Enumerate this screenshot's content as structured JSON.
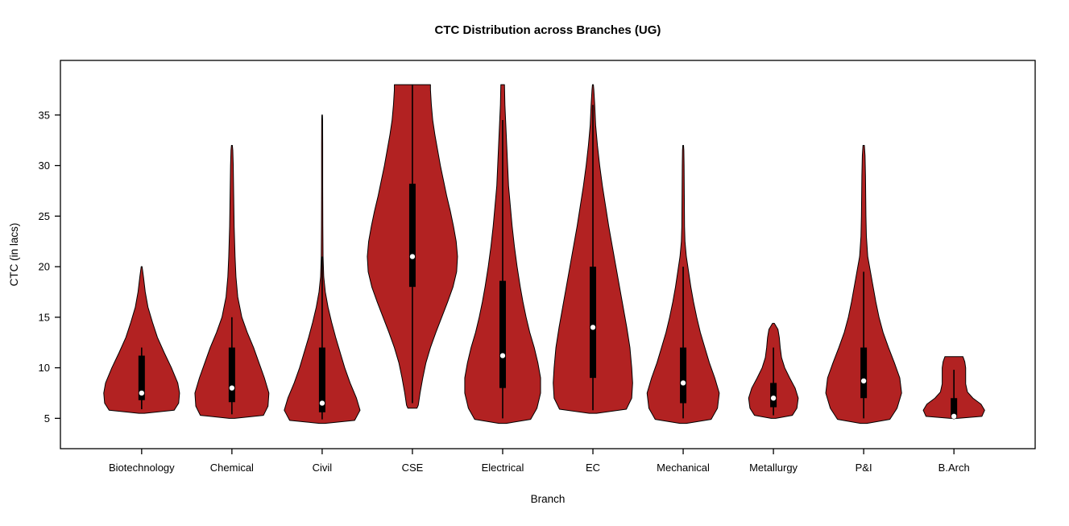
{
  "chart_data": {
    "type": "violin",
    "title": "CTC Distribution across Branches (UG)",
    "xlabel": "Branch",
    "ylabel": "CTC (in lacs)",
    "ylim": [
      2.0,
      40.4
    ],
    "yticks": [
      5,
      10,
      15,
      20,
      25,
      30,
      35
    ],
    "x_units_span": 10.8,
    "grid": false,
    "legend": "none",
    "fill_color": "#B22222",
    "outline_color": "#000000",
    "box_color": "#000000",
    "median_dot_color": "#ffffff",
    "categories": [
      "Biotechnology",
      "Chemical",
      "Civil",
      "CSE",
      "Electrical",
      "EC",
      "Mechanical",
      "Metallurgy",
      "P&I",
      "B.Arch"
    ],
    "violins": [
      {
        "branch": "Biotechnology",
        "min": 5.5,
        "max": 20,
        "median": 7.5,
        "q1": 6.8,
        "q3": 11.2,
        "whisker_low": 5.9,
        "whisker_high": 12,
        "profile": [
          [
            5.5,
            0.06
          ],
          [
            5.8,
            0.72
          ],
          [
            6.5,
            0.82
          ],
          [
            7.5,
            0.84
          ],
          [
            8.5,
            0.8
          ],
          [
            10,
            0.66
          ],
          [
            11.5,
            0.5
          ],
          [
            13,
            0.35
          ],
          [
            14.5,
            0.24
          ],
          [
            16,
            0.14
          ],
          [
            17.5,
            0.08
          ],
          [
            19,
            0.04
          ],
          [
            20,
            0.01
          ]
        ]
      },
      {
        "branch": "Chemical",
        "min": 5.0,
        "max": 32,
        "median": 8.0,
        "q1": 6.6,
        "q3": 12,
        "whisker_low": 5.4,
        "whisker_high": 15,
        "profile": [
          [
            5.0,
            0.06
          ],
          [
            5.3,
            0.7
          ],
          [
            6.2,
            0.8
          ],
          [
            7.5,
            0.82
          ],
          [
            9,
            0.72
          ],
          [
            10.5,
            0.6
          ],
          [
            12,
            0.48
          ],
          [
            13.5,
            0.34
          ],
          [
            15,
            0.22
          ],
          [
            17,
            0.13
          ],
          [
            19,
            0.09
          ],
          [
            21,
            0.07
          ],
          [
            24,
            0.05
          ],
          [
            27,
            0.04
          ],
          [
            30,
            0.03
          ],
          [
            31.5,
            0.02
          ],
          [
            32,
            0.01
          ]
        ]
      },
      {
        "branch": "Civil",
        "min": 4.5,
        "max": 35,
        "median": 6.5,
        "q1": 5.6,
        "q3": 12,
        "whisker_low": 4.9,
        "whisker_high": 21,
        "profile": [
          [
            4.5,
            0.06
          ],
          [
            4.8,
            0.72
          ],
          [
            5.8,
            0.84
          ],
          [
            7,
            0.76
          ],
          [
            8.5,
            0.62
          ],
          [
            10,
            0.5
          ],
          [
            11.5,
            0.4
          ],
          [
            13,
            0.3
          ],
          [
            14.5,
            0.21
          ],
          [
            16,
            0.13
          ],
          [
            17.5,
            0.07
          ],
          [
            19,
            0.035
          ],
          [
            21,
            0.02
          ],
          [
            24,
            0.015
          ],
          [
            28,
            0.012
          ],
          [
            32,
            0.012
          ],
          [
            34.5,
            0.01
          ],
          [
            35,
            0.006
          ]
        ]
      },
      {
        "branch": "CSE",
        "min": 6,
        "max": 38,
        "median": 21,
        "q1": 18,
        "q3": 28.2,
        "whisker_low": 6.5,
        "whisker_high": 38,
        "profile": [
          [
            6,
            0.1
          ],
          [
            6.3,
            0.13
          ],
          [
            7.5,
            0.17
          ],
          [
            9,
            0.23
          ],
          [
            10.5,
            0.3
          ],
          [
            12,
            0.4
          ],
          [
            13.5,
            0.52
          ],
          [
            15,
            0.65
          ],
          [
            16.5,
            0.78
          ],
          [
            18,
            0.9
          ],
          [
            19.5,
            0.98
          ],
          [
            21,
            1.0
          ],
          [
            22.5,
            0.97
          ],
          [
            24,
            0.91
          ],
          [
            25.5,
            0.84
          ],
          [
            27,
            0.76
          ],
          [
            28.5,
            0.69
          ],
          [
            30,
            0.62
          ],
          [
            31.5,
            0.56
          ],
          [
            33,
            0.5
          ],
          [
            34.5,
            0.45
          ],
          [
            36,
            0.42
          ],
          [
            37.5,
            0.4
          ],
          [
            38,
            0.4
          ]
        ]
      },
      {
        "branch": "Electrical",
        "min": 4.5,
        "max": 38,
        "median": 11.2,
        "q1": 8,
        "q3": 18.6,
        "whisker_low": 5,
        "whisker_high": 34.5,
        "profile": [
          [
            4.5,
            0.08
          ],
          [
            4.9,
            0.62
          ],
          [
            6,
            0.76
          ],
          [
            7.5,
            0.84
          ],
          [
            9,
            0.84
          ],
          [
            10.5,
            0.78
          ],
          [
            12,
            0.7
          ],
          [
            13.5,
            0.6
          ],
          [
            15,
            0.52
          ],
          [
            16.5,
            0.45
          ],
          [
            18,
            0.39
          ],
          [
            20,
            0.32
          ],
          [
            22,
            0.26
          ],
          [
            24,
            0.21
          ],
          [
            26,
            0.17
          ],
          [
            28,
            0.13
          ],
          [
            30,
            0.11
          ],
          [
            32,
            0.09
          ],
          [
            34,
            0.07
          ],
          [
            36,
            0.05
          ],
          [
            38,
            0.04
          ]
        ]
      },
      {
        "branch": "EC",
        "min": 5.5,
        "max": 38,
        "median": 14,
        "q1": 9,
        "q3": 20,
        "whisker_low": 5.8,
        "whisker_high": 36,
        "profile": [
          [
            5.5,
            0.08
          ],
          [
            5.9,
            0.74
          ],
          [
            7,
            0.86
          ],
          [
            8.5,
            0.88
          ],
          [
            10,
            0.86
          ],
          [
            12,
            0.82
          ],
          [
            14,
            0.75
          ],
          [
            16,
            0.67
          ],
          [
            18,
            0.59
          ],
          [
            20,
            0.51
          ],
          [
            22,
            0.43
          ],
          [
            24,
            0.35
          ],
          [
            26,
            0.28
          ],
          [
            28,
            0.21
          ],
          [
            30,
            0.15
          ],
          [
            32,
            0.1
          ],
          [
            34,
            0.06
          ],
          [
            36,
            0.04
          ],
          [
            37.5,
            0.02
          ],
          [
            38,
            0.01
          ]
        ]
      },
      {
        "branch": "Mechanical",
        "min": 4.5,
        "max": 32,
        "median": 8.5,
        "q1": 6.5,
        "q3": 12,
        "whisker_low": 5,
        "whisker_high": 20,
        "profile": [
          [
            4.5,
            0.07
          ],
          [
            4.9,
            0.62
          ],
          [
            6,
            0.76
          ],
          [
            7.5,
            0.8
          ],
          [
            9,
            0.7
          ],
          [
            10.5,
            0.58
          ],
          [
            12,
            0.48
          ],
          [
            13.5,
            0.38
          ],
          [
            15,
            0.3
          ],
          [
            16.5,
            0.23
          ],
          [
            18,
            0.17
          ],
          [
            19.5,
            0.12
          ],
          [
            21,
            0.07
          ],
          [
            22.5,
            0.04
          ],
          [
            24,
            0.03
          ],
          [
            27,
            0.025
          ],
          [
            30,
            0.02
          ],
          [
            31.5,
            0.015
          ],
          [
            32,
            0.008
          ]
        ]
      },
      {
        "branch": "Metallurgy",
        "min": 5,
        "max": 14.4,
        "median": 7,
        "q1": 6.1,
        "q3": 8.5,
        "whisker_low": 5.3,
        "whisker_high": 12,
        "profile": [
          [
            5,
            0.05
          ],
          [
            5.3,
            0.42
          ],
          [
            6,
            0.52
          ],
          [
            7,
            0.55
          ],
          [
            8,
            0.48
          ],
          [
            9,
            0.36
          ],
          [
            10,
            0.25
          ],
          [
            11,
            0.18
          ],
          [
            12,
            0.15
          ],
          [
            13,
            0.13
          ],
          [
            13.8,
            0.1
          ],
          [
            14.4,
            0.02
          ]
        ]
      },
      {
        "branch": "P&I",
        "min": 4.5,
        "max": 32,
        "median": 8.7,
        "q1": 7,
        "q3": 12,
        "whisker_low": 5,
        "whisker_high": 19.5,
        "profile": [
          [
            4.5,
            0.07
          ],
          [
            4.9,
            0.58
          ],
          [
            6,
            0.74
          ],
          [
            7.5,
            0.84
          ],
          [
            9,
            0.8
          ],
          [
            10.5,
            0.68
          ],
          [
            12,
            0.55
          ],
          [
            13.5,
            0.43
          ],
          [
            15,
            0.34
          ],
          [
            16.5,
            0.27
          ],
          [
            18,
            0.21
          ],
          [
            19.5,
            0.15
          ],
          [
            21,
            0.09
          ],
          [
            23,
            0.06
          ],
          [
            25,
            0.05
          ],
          [
            27,
            0.045
          ],
          [
            29,
            0.04
          ],
          [
            31,
            0.03
          ],
          [
            32,
            0.015
          ]
        ]
      },
      {
        "branch": "B.Arch",
        "min": 5,
        "max": 11.1,
        "median": 5.2,
        "q1": 5.1,
        "q3": 7,
        "whisker_low": 5,
        "whisker_high": 9.8,
        "profile": [
          [
            5,
            0.08
          ],
          [
            5.2,
            0.62
          ],
          [
            5.8,
            0.68
          ],
          [
            6.4,
            0.6
          ],
          [
            7,
            0.42
          ],
          [
            7.6,
            0.3
          ],
          [
            8.4,
            0.26
          ],
          [
            9.2,
            0.26
          ],
          [
            10,
            0.26
          ],
          [
            10.6,
            0.24
          ],
          [
            11.1,
            0.2
          ]
        ]
      }
    ]
  }
}
